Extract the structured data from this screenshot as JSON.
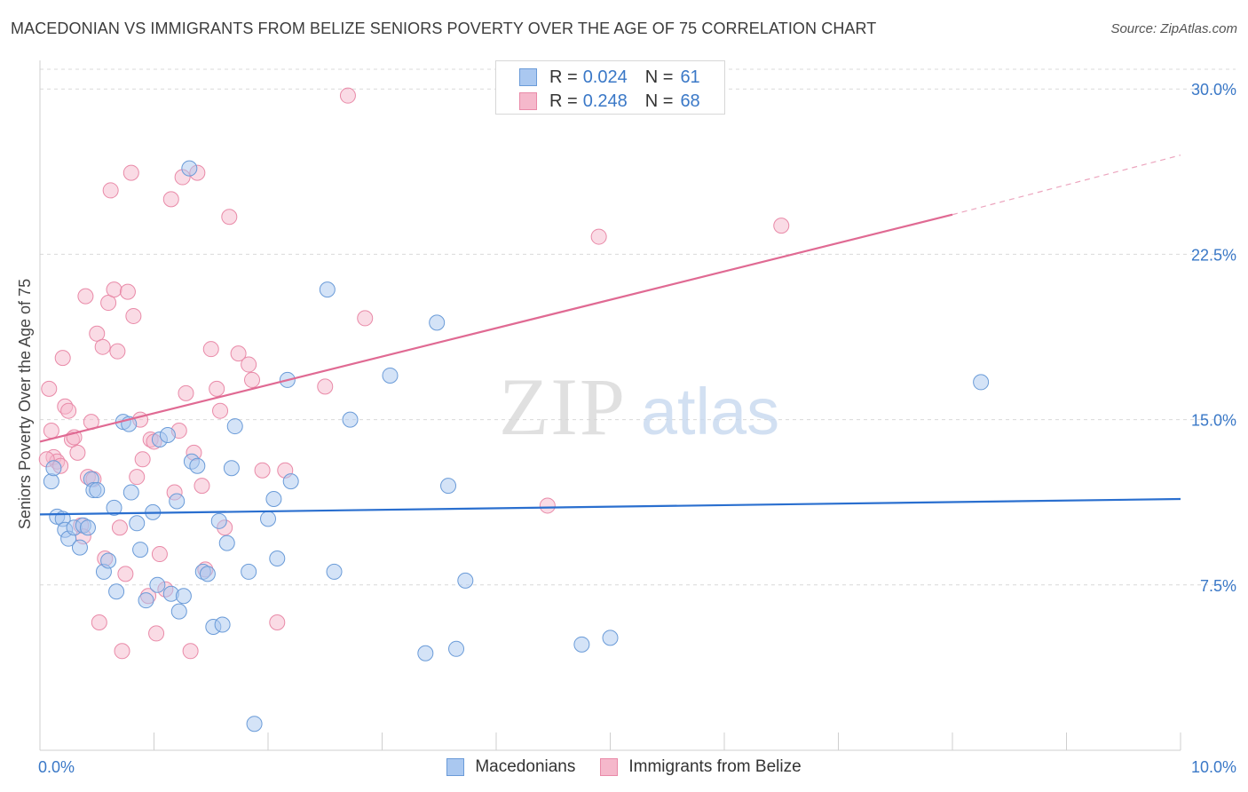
{
  "title": "MACEDONIAN VS IMMIGRANTS FROM BELIZE SENIORS POVERTY OVER THE AGE OF 75 CORRELATION CHART",
  "source": "Source: ZipAtlas.com",
  "watermark": {
    "zip": "ZIP",
    "atlas": "atlas"
  },
  "colors": {
    "blue_fill": "#aac8f0",
    "blue_stroke": "#6a9bd8",
    "blue_line": "#2a6fcf",
    "pink_fill": "#f5b8cb",
    "pink_stroke": "#e98aa8",
    "pink_line": "#e06a93",
    "axis_label": "#3a78c7",
    "grid": "#d9d9d9"
  },
  "legend_top": [
    {
      "r_label": "R =",
      "r_value": "0.024",
      "n_label": "N =",
      "n_value": "61",
      "series": "Macedonians"
    },
    {
      "r_label": "R =",
      "r_value": "0.248",
      "n_label": "N =",
      "n_value": "68",
      "series": "Immigrants from Belize"
    }
  ],
  "legend_bottom": [
    "Macedonians",
    "Immigrants from Belize"
  ],
  "chart_data": {
    "type": "scatter",
    "title": "MACEDONIAN VS IMMIGRANTS FROM BELIZE SENIORS POVERTY OVER THE AGE OF 75 CORRELATION CHART",
    "xlabel": "",
    "ylabel": "Seniors Poverty Over the Age of 75",
    "xlim": [
      0,
      10
    ],
    "ylim": [
      0,
      31.5
    ],
    "x_tick_labels": [
      "0.0%",
      "10.0%"
    ],
    "y_ticks": [
      7.5,
      15.0,
      22.5,
      30.0
    ],
    "y_tick_labels": [
      "7.5%",
      "15.0%",
      "22.5%",
      "30.0%"
    ],
    "grid": true,
    "series": [
      {
        "name": "Macedonians",
        "r": 0.024,
        "n": 61,
        "trend": {
          "x0": 0.0,
          "y0": 10.7,
          "x1": 10.0,
          "y1": 11.4
        },
        "points": [
          [
            0.1,
            12.2
          ],
          [
            0.15,
            10.6
          ],
          [
            0.2,
            10.5
          ],
          [
            0.22,
            10.0
          ],
          [
            0.25,
            9.6
          ],
          [
            0.3,
            10.1
          ],
          [
            0.35,
            9.2
          ],
          [
            0.38,
            10.2
          ],
          [
            0.45,
            12.3
          ],
          [
            0.47,
            11.8
          ],
          [
            0.5,
            11.8
          ],
          [
            0.56,
            8.1
          ],
          [
            0.6,
            8.6
          ],
          [
            0.65,
            11.0
          ],
          [
            0.67,
            7.2
          ],
          [
            0.73,
            14.9
          ],
          [
            0.78,
            14.8
          ],
          [
            0.8,
            11.7
          ],
          [
            0.85,
            10.3
          ],
          [
            0.88,
            9.1
          ],
          [
            0.93,
            6.8
          ],
          [
            0.99,
            10.8
          ],
          [
            1.03,
            7.5
          ],
          [
            1.05,
            14.1
          ],
          [
            1.12,
            14.3
          ],
          [
            1.15,
            7.1
          ],
          [
            1.2,
            11.3
          ],
          [
            1.22,
            6.3
          ],
          [
            1.26,
            7.0
          ],
          [
            1.31,
            26.4
          ],
          [
            1.33,
            13.1
          ],
          [
            1.38,
            12.9
          ],
          [
            1.43,
            8.1
          ],
          [
            1.47,
            8.0
          ],
          [
            1.52,
            5.6
          ],
          [
            1.57,
            10.4
          ],
          [
            1.6,
            5.7
          ],
          [
            1.64,
            9.4
          ],
          [
            1.68,
            12.8
          ],
          [
            1.71,
            14.7
          ],
          [
            1.83,
            8.1
          ],
          [
            1.88,
            1.2
          ],
          [
            2.0,
            10.5
          ],
          [
            2.05,
            11.4
          ],
          [
            2.08,
            8.7
          ],
          [
            2.17,
            16.8
          ],
          [
            2.2,
            12.2
          ],
          [
            2.52,
            20.9
          ],
          [
            2.58,
            8.1
          ],
          [
            2.72,
            15.0
          ],
          [
            3.07,
            17.0
          ],
          [
            3.38,
            4.4
          ],
          [
            3.48,
            19.4
          ],
          [
            3.58,
            12.0
          ],
          [
            3.65,
            4.6
          ],
          [
            3.73,
            7.7
          ],
          [
            4.75,
            4.8
          ],
          [
            5.0,
            5.1
          ],
          [
            8.25,
            16.7
          ],
          [
            0.12,
            12.8
          ],
          [
            0.42,
            10.1
          ]
        ]
      },
      {
        "name": "Immigrants from Belize",
        "r": 0.248,
        "n": 68,
        "trend": {
          "x0": 0.0,
          "y0": 14.0,
          "x1": 8.0,
          "y1": 24.3,
          "dashed_to_x": 10.0,
          "dashed_to_y": 27.0
        },
        "points": [
          [
            0.08,
            16.4
          ],
          [
            0.1,
            14.5
          ],
          [
            0.12,
            13.3
          ],
          [
            0.15,
            13.1
          ],
          [
            0.18,
            12.9
          ],
          [
            0.2,
            17.8
          ],
          [
            0.22,
            15.6
          ],
          [
            0.25,
            15.4
          ],
          [
            0.28,
            14.1
          ],
          [
            0.3,
            14.2
          ],
          [
            0.33,
            13.5
          ],
          [
            0.36,
            10.2
          ],
          [
            0.38,
            9.7
          ],
          [
            0.4,
            20.6
          ],
          [
            0.42,
            12.4
          ],
          [
            0.45,
            14.9
          ],
          [
            0.47,
            12.3
          ],
          [
            0.5,
            18.9
          ],
          [
            0.52,
            5.8
          ],
          [
            0.55,
            18.3
          ],
          [
            0.57,
            8.7
          ],
          [
            0.6,
            20.3
          ],
          [
            0.62,
            25.4
          ],
          [
            0.65,
            20.9
          ],
          [
            0.68,
            18.1
          ],
          [
            0.7,
            10.1
          ],
          [
            0.72,
            4.5
          ],
          [
            0.75,
            8.0
          ],
          [
            0.77,
            20.8
          ],
          [
            0.8,
            26.2
          ],
          [
            0.82,
            19.7
          ],
          [
            0.85,
            12.4
          ],
          [
            0.88,
            15.0
          ],
          [
            0.9,
            13.2
          ],
          [
            0.95,
            7.0
          ],
          [
            0.97,
            14.1
          ],
          [
            1.0,
            14.0
          ],
          [
            1.02,
            5.3
          ],
          [
            1.05,
            8.9
          ],
          [
            1.1,
            7.3
          ],
          [
            1.15,
            25.0
          ],
          [
            1.18,
            11.7
          ],
          [
            1.22,
            14.5
          ],
          [
            1.25,
            26.0
          ],
          [
            1.28,
            16.2
          ],
          [
            1.32,
            4.5
          ],
          [
            1.35,
            13.5
          ],
          [
            1.38,
            26.2
          ],
          [
            1.42,
            12.0
          ],
          [
            1.45,
            8.2
          ],
          [
            1.5,
            18.2
          ],
          [
            1.55,
            16.4
          ],
          [
            1.58,
            15.4
          ],
          [
            1.62,
            10.1
          ],
          [
            1.66,
            24.2
          ],
          [
            1.74,
            18.0
          ],
          [
            1.83,
            17.5
          ],
          [
            1.86,
            16.8
          ],
          [
            1.95,
            12.7
          ],
          [
            2.08,
            5.8
          ],
          [
            2.15,
            12.7
          ],
          [
            2.5,
            16.5
          ],
          [
            2.7,
            29.7
          ],
          [
            2.85,
            19.6
          ],
          [
            4.45,
            11.1
          ],
          [
            4.9,
            23.3
          ],
          [
            6.5,
            23.8
          ],
          [
            0.06,
            13.2
          ]
        ]
      }
    ]
  }
}
